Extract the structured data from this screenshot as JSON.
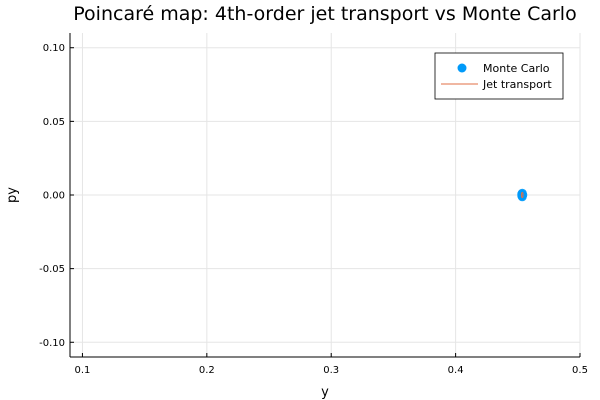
{
  "chart_data": {
    "type": "scatter",
    "title": "Poincaré map: 4th-order jet transport vs Monte Carlo",
    "xlabel": "y",
    "ylabel": "py",
    "xlim": [
      0.09,
      0.5
    ],
    "ylim": [
      -0.11,
      0.11
    ],
    "xticks": [
      0.1,
      0.2,
      0.3,
      0.4,
      0.5
    ],
    "xtick_labels": [
      "0.1",
      "0.2",
      "0.3",
      "0.4",
      "0.5"
    ],
    "yticks": [
      0.1,
      0.05,
      0.0,
      -0.05,
      -0.1
    ],
    "ytick_labels": [
      "0.10",
      "0.05",
      "0.00",
      "-0.05",
      "-0.10"
    ],
    "grid": true,
    "legend_position": "top-right",
    "series": [
      {
        "name": "Monte Carlo",
        "kind": "scatter",
        "color": "#009af9",
        "points": [
          {
            "x": 0.4534,
            "y": 0.0
          },
          {
            "x": 0.4536,
            "y": 0.0012
          },
          {
            "x": 0.4536,
            "y": -0.0012
          },
          {
            "x": 0.4532,
            "y": 0.0006
          },
          {
            "x": 0.4532,
            "y": -0.0006
          },
          {
            "x": 0.454,
            "y": 0.0
          }
        ]
      },
      {
        "name": "Jet transport",
        "kind": "line",
        "color": "#e26f46",
        "center": {
          "x": 0.4536,
          "y": 0.0
        },
        "radius": {
          "x": 0.0006,
          "y": 0.0018
        }
      }
    ]
  }
}
